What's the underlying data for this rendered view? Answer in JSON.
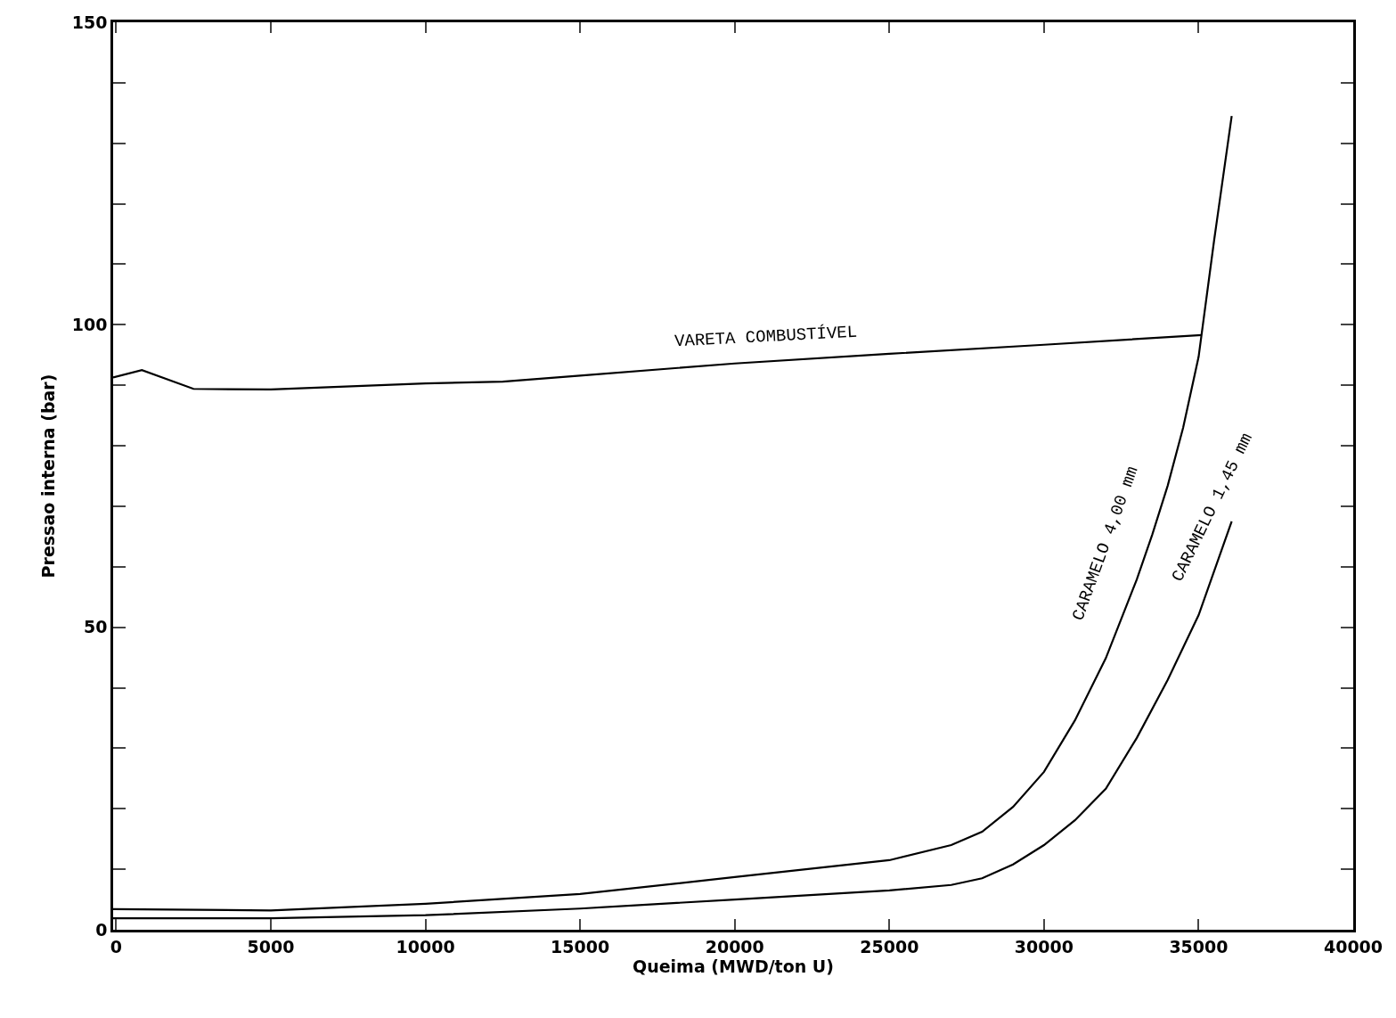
{
  "chart_data": {
    "type": "line",
    "xlabel": "Queima (MWD/ton U)",
    "ylabel": "Pressao interna (bar)",
    "xlim": [
      -100,
      40000
    ],
    "xticks": [
      0,
      5000,
      10000,
      15000,
      20000,
      25000,
      30000,
      35000,
      40000
    ],
    "ylim": [
      0,
      150
    ],
    "yticks": [
      0,
      {
        "value": 10,
        "label": null
      },
      {
        "value": 20,
        "label": null
      },
      {
        "value": 30,
        "label": null
      },
      {
        "value": 40,
        "label": null
      },
      50,
      {
        "value": 60,
        "label": null
      },
      {
        "value": 70,
        "label": null
      },
      {
        "value": 80,
        "label": null
      },
      {
        "value": 90,
        "label": null
      },
      100,
      {
        "value": 110,
        "label": null
      },
      {
        "value": 120,
        "label": null
      },
      {
        "value": 130,
        "label": null
      },
      {
        "value": 140,
        "label": null
      },
      150
    ],
    "legend": false,
    "marker": "none",
    "line_style": "solid",
    "series": [
      {
        "name": "VARETA COMBUSTÍVEL",
        "color": "#000000",
        "x": [
          -100,
          830,
          2500,
          5000,
          10000,
          12500,
          15000,
          20000,
          25000,
          30000,
          35100
        ],
        "values": [
          91.3,
          92.5,
          89.4,
          89.3,
          90.3,
          90.6,
          91.6,
          93.6,
          95.2,
          96.7,
          98.3
        ]
      },
      {
        "name": "CARAMELO 4,00 mm",
        "color": "#000000",
        "x": [
          -100,
          5000,
          10000,
          15000,
          20000,
          25000,
          27000,
          28000,
          29000,
          30000,
          31000,
          32000,
          33000,
          33500,
          34000,
          34500,
          35000,
          35500,
          36070
        ],
        "values": [
          3.4,
          3.2,
          4.3,
          5.9,
          8.7,
          11.5,
          14.0,
          16.2,
          20.3,
          26.1,
          34.6,
          44.9,
          57.9,
          65.3,
          73.4,
          83.0,
          94.7,
          113.9,
          134.5
        ]
      },
      {
        "name": "CARAMELO 1,45 mm",
        "color": "#000000",
        "x": [
          -100,
          5000,
          10000,
          15000,
          20000,
          25000,
          27000,
          28000,
          29000,
          30000,
          31000,
          32000,
          33000,
          34000,
          35000,
          36070
        ],
        "values": [
          1.9,
          1.9,
          2.4,
          3.5,
          5.0,
          6.5,
          7.4,
          8.5,
          10.8,
          14.0,
          18.1,
          23.3,
          31.7,
          41.3,
          52.0,
          67.5
        ]
      }
    ]
  }
}
